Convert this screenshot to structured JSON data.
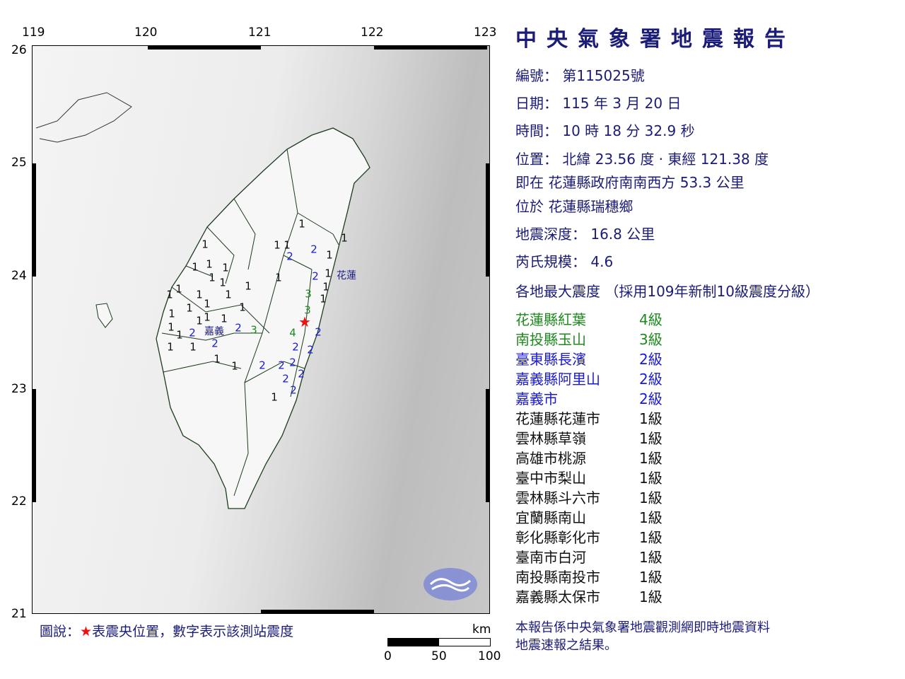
{
  "map": {
    "lon_ticks": [
      "119",
      "120",
      "121",
      "122",
      "123"
    ],
    "lat_ticks": [
      "26",
      "25",
      "24",
      "23",
      "22",
      "21"
    ],
    "epicenter_marker": "red-star",
    "place_labels": [
      "花蓮",
      "嘉義"
    ],
    "station_intensities": [
      "1",
      "1",
      "1",
      "1",
      "1",
      "2",
      "2",
      "1",
      "1",
      "1",
      "1",
      "2",
      "1",
      "1",
      "1",
      "1",
      "1",
      "1",
      "1",
      "1",
      "1",
      "1",
      "3",
      "1",
      "1",
      "1",
      "1",
      "1",
      "1",
      "1",
      "3",
      "1",
      "1",
      "2",
      "2",
      "2",
      "3",
      "4",
      "2",
      "1",
      "1",
      "1",
      "2",
      "2",
      "1",
      "1",
      "2",
      "2",
      "2",
      "2",
      "2",
      "2",
      "1"
    ],
    "intensity_colors": {
      "1": "#111111",
      "2": "#1a1ad6",
      "3": "#1e8a1e",
      "4": "#1e8a1e"
    },
    "logo": "CWA"
  },
  "legend": {
    "prefix": "圖說：",
    "star": "★",
    "text": "表震央位置，數字表示該測站震度"
  },
  "scale": {
    "unit": "km",
    "labels": [
      "0",
      "50",
      "100"
    ]
  },
  "report": {
    "title": "中央氣象署地震報告",
    "number": "編號：  第115025號",
    "date": "日期：  115  年  3  月  20  日",
    "time": "時間：  10  時  18  分  32.9  秒",
    "position": "位置：  北緯  23.56  度 · 東經  121.38  度",
    "relative": "即在  花蓮縣政府南南西方  53.3  公里",
    "located": "位於  花蓮縣瑞穗鄉",
    "depth": "地震深度：  16.8  公里",
    "magnitude": "芮氏規模：  4.6",
    "intensity_header": "各地最大震度 （採用109年新制10級震度分級）",
    "intensities": [
      {
        "place": "花蓮縣紅葉",
        "level": "4級",
        "color": "#1e8a1e"
      },
      {
        "place": "南投縣玉山",
        "level": "3級",
        "color": "#1e8a1e"
      },
      {
        "place": "臺東縣長濱",
        "level": "2級",
        "color": "#1a1ad6"
      },
      {
        "place": "嘉義縣阿里山",
        "level": "2級",
        "color": "#1a1ad6"
      },
      {
        "place": "嘉義市",
        "level": "2級",
        "color": "#1a1ad6"
      },
      {
        "place": "花蓮縣花蓮市",
        "level": "1級",
        "color": "#111111"
      },
      {
        "place": "雲林縣草嶺",
        "level": "1級",
        "color": "#111111"
      },
      {
        "place": "高雄市桃源",
        "level": "1級",
        "color": "#111111"
      },
      {
        "place": "臺中市梨山",
        "level": "1級",
        "color": "#111111"
      },
      {
        "place": "雲林縣斗六市",
        "level": "1級",
        "color": "#111111"
      },
      {
        "place": "宜蘭縣南山",
        "level": "1級",
        "color": "#111111"
      },
      {
        "place": "彰化縣彰化市",
        "level": "1級",
        "color": "#111111"
      },
      {
        "place": "臺南市白河",
        "level": "1級",
        "color": "#111111"
      },
      {
        "place": "南投縣南投市",
        "level": "1級",
        "color": "#111111"
      },
      {
        "place": "嘉義縣太保市",
        "level": "1級",
        "color": "#111111"
      }
    ],
    "footer_line1": "本報告係中央氣象署地震觀測網即時地震資料",
    "footer_line2": "地震速報之結果。"
  },
  "colors": {
    "title": "#1b1b7a",
    "epicenter": "#ee1111"
  }
}
